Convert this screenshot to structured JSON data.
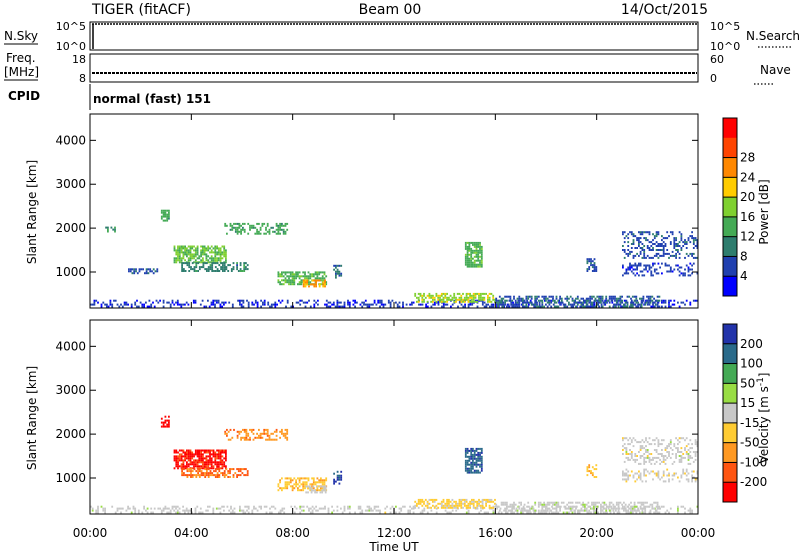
{
  "header": {
    "radar": "TIGER (fitACF)",
    "beam": "Beam 00",
    "date": "14/Oct/2015"
  },
  "strips": {
    "nsky_label": "N.Sky",
    "nsearch_label": "N.Search",
    "nsky_ticks": [
      "10^5",
      "10^0"
    ],
    "nsearch_ticks": [
      "10^5",
      "10^0"
    ],
    "freq_label_1": "Freq.",
    "freq_label_2": "[MHz]",
    "freq_ticks": [
      "18",
      "8"
    ],
    "nave_label": "Nave",
    "nave_ticks": [
      "60",
      "0"
    ],
    "cpid_label": "CPID",
    "cpid_text": "normal (fast) 151"
  },
  "chart_data": [
    {
      "type": "heatmap",
      "title": "Power",
      "ylabel": "Slant Range [km]",
      "xlabel": "Time UT",
      "x_ticks": [
        "00:00",
        "04:00",
        "08:00",
        "12:00",
        "16:00",
        "20:00",
        "00:00"
      ],
      "y_ticks": [
        1000,
        2000,
        3000,
        4000
      ],
      "ylim": [
        180,
        4600
      ],
      "xlim_hours": [
        0,
        24
      ],
      "colorbar_label": "Power [dB]",
      "colorbar_ticks": [
        "4",
        "8",
        "12",
        "16",
        "20",
        "24",
        "28"
      ],
      "colorbar_range": [
        0,
        32
      ],
      "colorbar_colors": [
        "#0000ff",
        "#2040b0",
        "#2e7d6e",
        "#44aa55",
        "#7fd030",
        "#ffcc00",
        "#ff8800",
        "#ff4400",
        "#ff0000"
      ],
      "regions": [
        {
          "t0": 0.0,
          "t1": 24.0,
          "r0": 190,
          "r1": 330,
          "level": 4,
          "density": 0.35
        },
        {
          "t0": 0.6,
          "t1": 1.0,
          "r0": 1900,
          "r1": 2000,
          "level": 10,
          "density": 0.4
        },
        {
          "t0": 1.5,
          "t1": 2.7,
          "r0": 950,
          "r1": 1050,
          "level": 6,
          "density": 0.5
        },
        {
          "t0": 2.8,
          "t1": 3.1,
          "r0": 2150,
          "r1": 2400,
          "level": 12,
          "density": 0.6
        },
        {
          "t0": 3.3,
          "t1": 5.4,
          "r0": 1200,
          "r1": 1600,
          "level": 14,
          "density": 0.75
        },
        {
          "t0": 3.6,
          "t1": 6.2,
          "r0": 1000,
          "r1": 1200,
          "level": 9,
          "density": 0.6
        },
        {
          "t0": 5.3,
          "t1": 7.8,
          "r0": 1850,
          "r1": 2100,
          "level": 12,
          "density": 0.45
        },
        {
          "t0": 7.4,
          "t1": 9.3,
          "r0": 700,
          "r1": 1000,
          "level": 13,
          "density": 0.7
        },
        {
          "t0": 8.4,
          "t1": 9.3,
          "r0": 650,
          "r1": 800,
          "level": 22,
          "density": 0.6
        },
        {
          "t0": 9.6,
          "t1": 9.9,
          "r0": 850,
          "r1": 1150,
          "level": 8,
          "density": 0.5
        },
        {
          "t0": 12.8,
          "t1": 16.0,
          "r0": 300,
          "r1": 520,
          "level": 17,
          "density": 0.6
        },
        {
          "t0": 14.8,
          "t1": 15.5,
          "r0": 1100,
          "r1": 1650,
          "level": 13,
          "density": 0.8
        },
        {
          "t0": 16.0,
          "t1": 22.5,
          "r0": 190,
          "r1": 430,
          "level": 7,
          "density": 0.55
        },
        {
          "t0": 19.6,
          "t1": 20.0,
          "r0": 1000,
          "r1": 1300,
          "level": 6,
          "density": 0.5
        },
        {
          "t0": 21.0,
          "t1": 24.0,
          "r0": 1300,
          "r1": 1900,
          "level": 6,
          "density": 0.35
        },
        {
          "t0": 21.0,
          "t1": 24.0,
          "r0": 900,
          "r1": 1200,
          "level": 5,
          "density": 0.3
        }
      ]
    },
    {
      "type": "heatmap",
      "title": "Velocity",
      "ylabel": "Slant Range [km]",
      "xlabel": "Time UT",
      "x_ticks": [
        "00:00",
        "04:00",
        "08:00",
        "12:00",
        "16:00",
        "20:00",
        "00:00"
      ],
      "y_ticks": [
        1000,
        2000,
        3000,
        4000
      ],
      "ylim": [
        180,
        4600
      ],
      "xlim_hours": [
        0,
        24
      ],
      "colorbar_label": "Velocity [m s^-1]",
      "colorbar_ticks": [
        "200",
        "100",
        "50",
        "15",
        "-15",
        "-50",
        "-100",
        "-200"
      ],
      "colorbar_range": [
        -250,
        250
      ],
      "colorbar_colors": [
        "#2233aa",
        "#2a6a8a",
        "#44aa55",
        "#99dd44",
        "#c8c8c8",
        "#ffcc33",
        "#ff9922",
        "#ff5511",
        "#ff0000"
      ],
      "regions": [
        {
          "t0": 0.0,
          "t1": 24.0,
          "r0": 190,
          "r1": 330,
          "level": 2,
          "density": 0.3
        },
        {
          "t0": 2.8,
          "t1": 3.1,
          "r0": 2150,
          "r1": 2400,
          "level": -220,
          "density": 0.6
        },
        {
          "t0": 3.3,
          "t1": 5.4,
          "r0": 1200,
          "r1": 1650,
          "level": -210,
          "density": 0.8
        },
        {
          "t0": 3.6,
          "t1": 6.2,
          "r0": 1000,
          "r1": 1200,
          "level": -150,
          "density": 0.6
        },
        {
          "t0": 5.3,
          "t1": 7.8,
          "r0": 1850,
          "r1": 2100,
          "level": -120,
          "density": 0.45
        },
        {
          "t0": 7.4,
          "t1": 9.3,
          "r0": 700,
          "r1": 1000,
          "level": -70,
          "density": 0.6
        },
        {
          "t0": 8.5,
          "t1": 9.3,
          "r0": 650,
          "r1": 800,
          "level": 0,
          "density": 0.6
        },
        {
          "t0": 9.6,
          "t1": 9.9,
          "r0": 850,
          "r1": 1150,
          "level": 200,
          "density": 0.5
        },
        {
          "t0": 12.8,
          "t1": 16.0,
          "r0": 300,
          "r1": 520,
          "level": -40,
          "density": 0.6
        },
        {
          "t0": 14.8,
          "t1": 15.5,
          "r0": 1100,
          "r1": 1650,
          "level": 180,
          "density": 0.8
        },
        {
          "t0": 16.0,
          "t1": 22.5,
          "r0": 190,
          "r1": 430,
          "level": 5,
          "density": 0.5
        },
        {
          "t0": 19.6,
          "t1": 20.0,
          "r0": 1000,
          "r1": 1300,
          "level": -80,
          "density": 0.5
        },
        {
          "t0": 21.0,
          "t1": 24.0,
          "r0": 1300,
          "r1": 1900,
          "level": 0,
          "density": 0.35
        },
        {
          "t0": 21.0,
          "t1": 24.0,
          "r0": 900,
          "r1": 1200,
          "level": -5,
          "density": 0.3
        }
      ]
    }
  ]
}
